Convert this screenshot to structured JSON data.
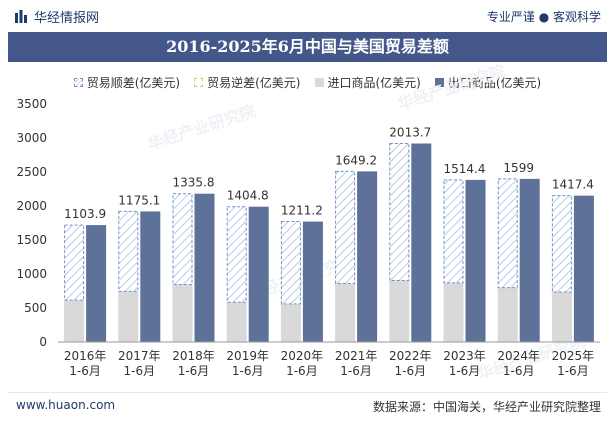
{
  "header": {
    "brand": "华经情报网",
    "tagline": "专业严谨 ● 客观科学"
  },
  "chart_data": {
    "type": "bar",
    "title": "2016-2025年6月中国与美国贸易差额",
    "categories": [
      "2016年\n1-6月",
      "2017年\n1-6月",
      "2018年\n1-6月",
      "2019年\n1-6月",
      "2020年\n1-6月",
      "2021年\n1-6月",
      "2022年\n1-6月",
      "2023年\n1-6月",
      "2024年\n1-6月",
      "2025年\n1-6月"
    ],
    "category_lines": [
      [
        "2016年",
        "1-6月"
      ],
      [
        "2017年",
        "1-6月"
      ],
      [
        "2018年",
        "1-6月"
      ],
      [
        "2019年",
        "1-6月"
      ],
      [
        "2020年",
        "1-6月"
      ],
      [
        "2021年",
        "1-6月"
      ],
      [
        "2022年",
        "1-6月"
      ],
      [
        "2023年",
        "1-6月"
      ],
      [
        "2024年",
        "1-6月"
      ],
      [
        "2025年",
        "1-6月"
      ]
    ],
    "series": [
      {
        "name": "贸易顺差(亿美元)",
        "values": [
          1103.9,
          1175.1,
          1335.8,
          1404.8,
          1211.2,
          1649.2,
          2013.7,
          1514.4,
          1599,
          1417.4
        ],
        "color": "#6f93c7"
      },
      {
        "name": "贸易逆差(亿美元)",
        "values": [
          0,
          0,
          0,
          0,
          0,
          0,
          0,
          0,
          0,
          0
        ],
        "color": "#e3c66a"
      },
      {
        "name": "进口商品(亿美元)",
        "values": [
          615,
          745,
          845,
          585,
          560,
          860,
          905,
          870,
          800,
          735
        ],
        "color": "#d9d9d9"
      },
      {
        "name": "出口商品(亿美元)",
        "values": [
          1719,
          1920,
          2181,
          1990,
          1771,
          2509,
          2919,
          2384,
          2399,
          2152
        ],
        "color": "#5e7199"
      }
    ],
    "data_labels": [
      "1103.9",
      "1175.1",
      "1335.8",
      "1404.8",
      "1211.2",
      "1649.2",
      "2013.7",
      "1514.4",
      "1599",
      "1417.4"
    ],
    "ylim": [
      0,
      3500
    ],
    "yticks": [
      0,
      500,
      1000,
      1500,
      2000,
      2500,
      3000,
      3500
    ],
    "xlabel": "",
    "ylabel": "",
    "legend_position": "top-center"
  },
  "watermark": "华经产业研究院",
  "footer": {
    "website": "www.huaon.com",
    "source": "数据来源：中国海关，华经产业研究院整理"
  }
}
